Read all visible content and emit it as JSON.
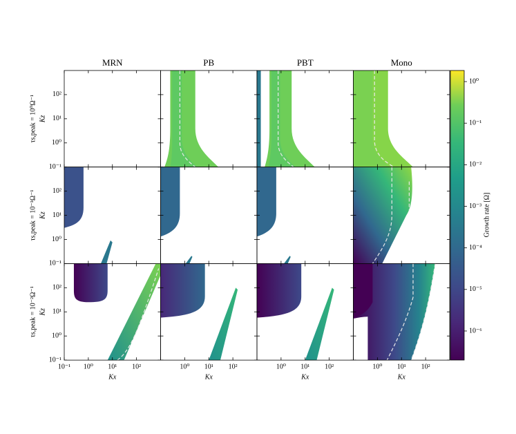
{
  "chart_data": {
    "type": "contour-grid",
    "columns": [
      "MRN",
      "PB",
      "PBT",
      "Mono"
    ],
    "rows": [
      "τs,peak = 10⁰Ω⁻¹",
      "τs,peak = 10⁻¹Ω⁻¹",
      "τs,peak = 10⁻²Ω⁻¹"
    ],
    "xlabel": "Kx",
    "ylabel": "Kz",
    "xscale": "log",
    "yscale": "log",
    "xlim": [
      0.1,
      1000
    ],
    "ylim": [
      0.1,
      1000
    ],
    "xticks": [
      {
        "value": 0.1,
        "label": "10⁻¹"
      },
      {
        "value": 1,
        "label": "10⁰"
      },
      {
        "value": 10,
        "label": "10¹"
      },
      {
        "value": 100,
        "label": "10²"
      }
    ],
    "yticks": [
      {
        "value": 0.1,
        "label": "10⁻¹"
      },
      {
        "value": 1,
        "label": "10⁰"
      },
      {
        "value": 10,
        "label": "10¹"
      },
      {
        "value": 100,
        "label": "10²"
      }
    ],
    "colorbar": {
      "label": "Growth rate [Ω]",
      "colormap": "viridis",
      "lim": [
        2e-07,
        1.85
      ],
      "ticks": [
        {
          "value": 1,
          "label": "10⁰"
        },
        {
          "value": 0.1,
          "label": "10⁻¹"
        },
        {
          "value": 0.01,
          "label": "10⁻²"
        },
        {
          "value": 0.001,
          "label": "10⁻³"
        },
        {
          "value": 0.0001,
          "label": "10⁻⁴"
        },
        {
          "value": 1e-05,
          "label": "10⁻⁵"
        },
        {
          "value": 1e-06,
          "label": "10⁻⁶"
        }
      ]
    }
  }
}
